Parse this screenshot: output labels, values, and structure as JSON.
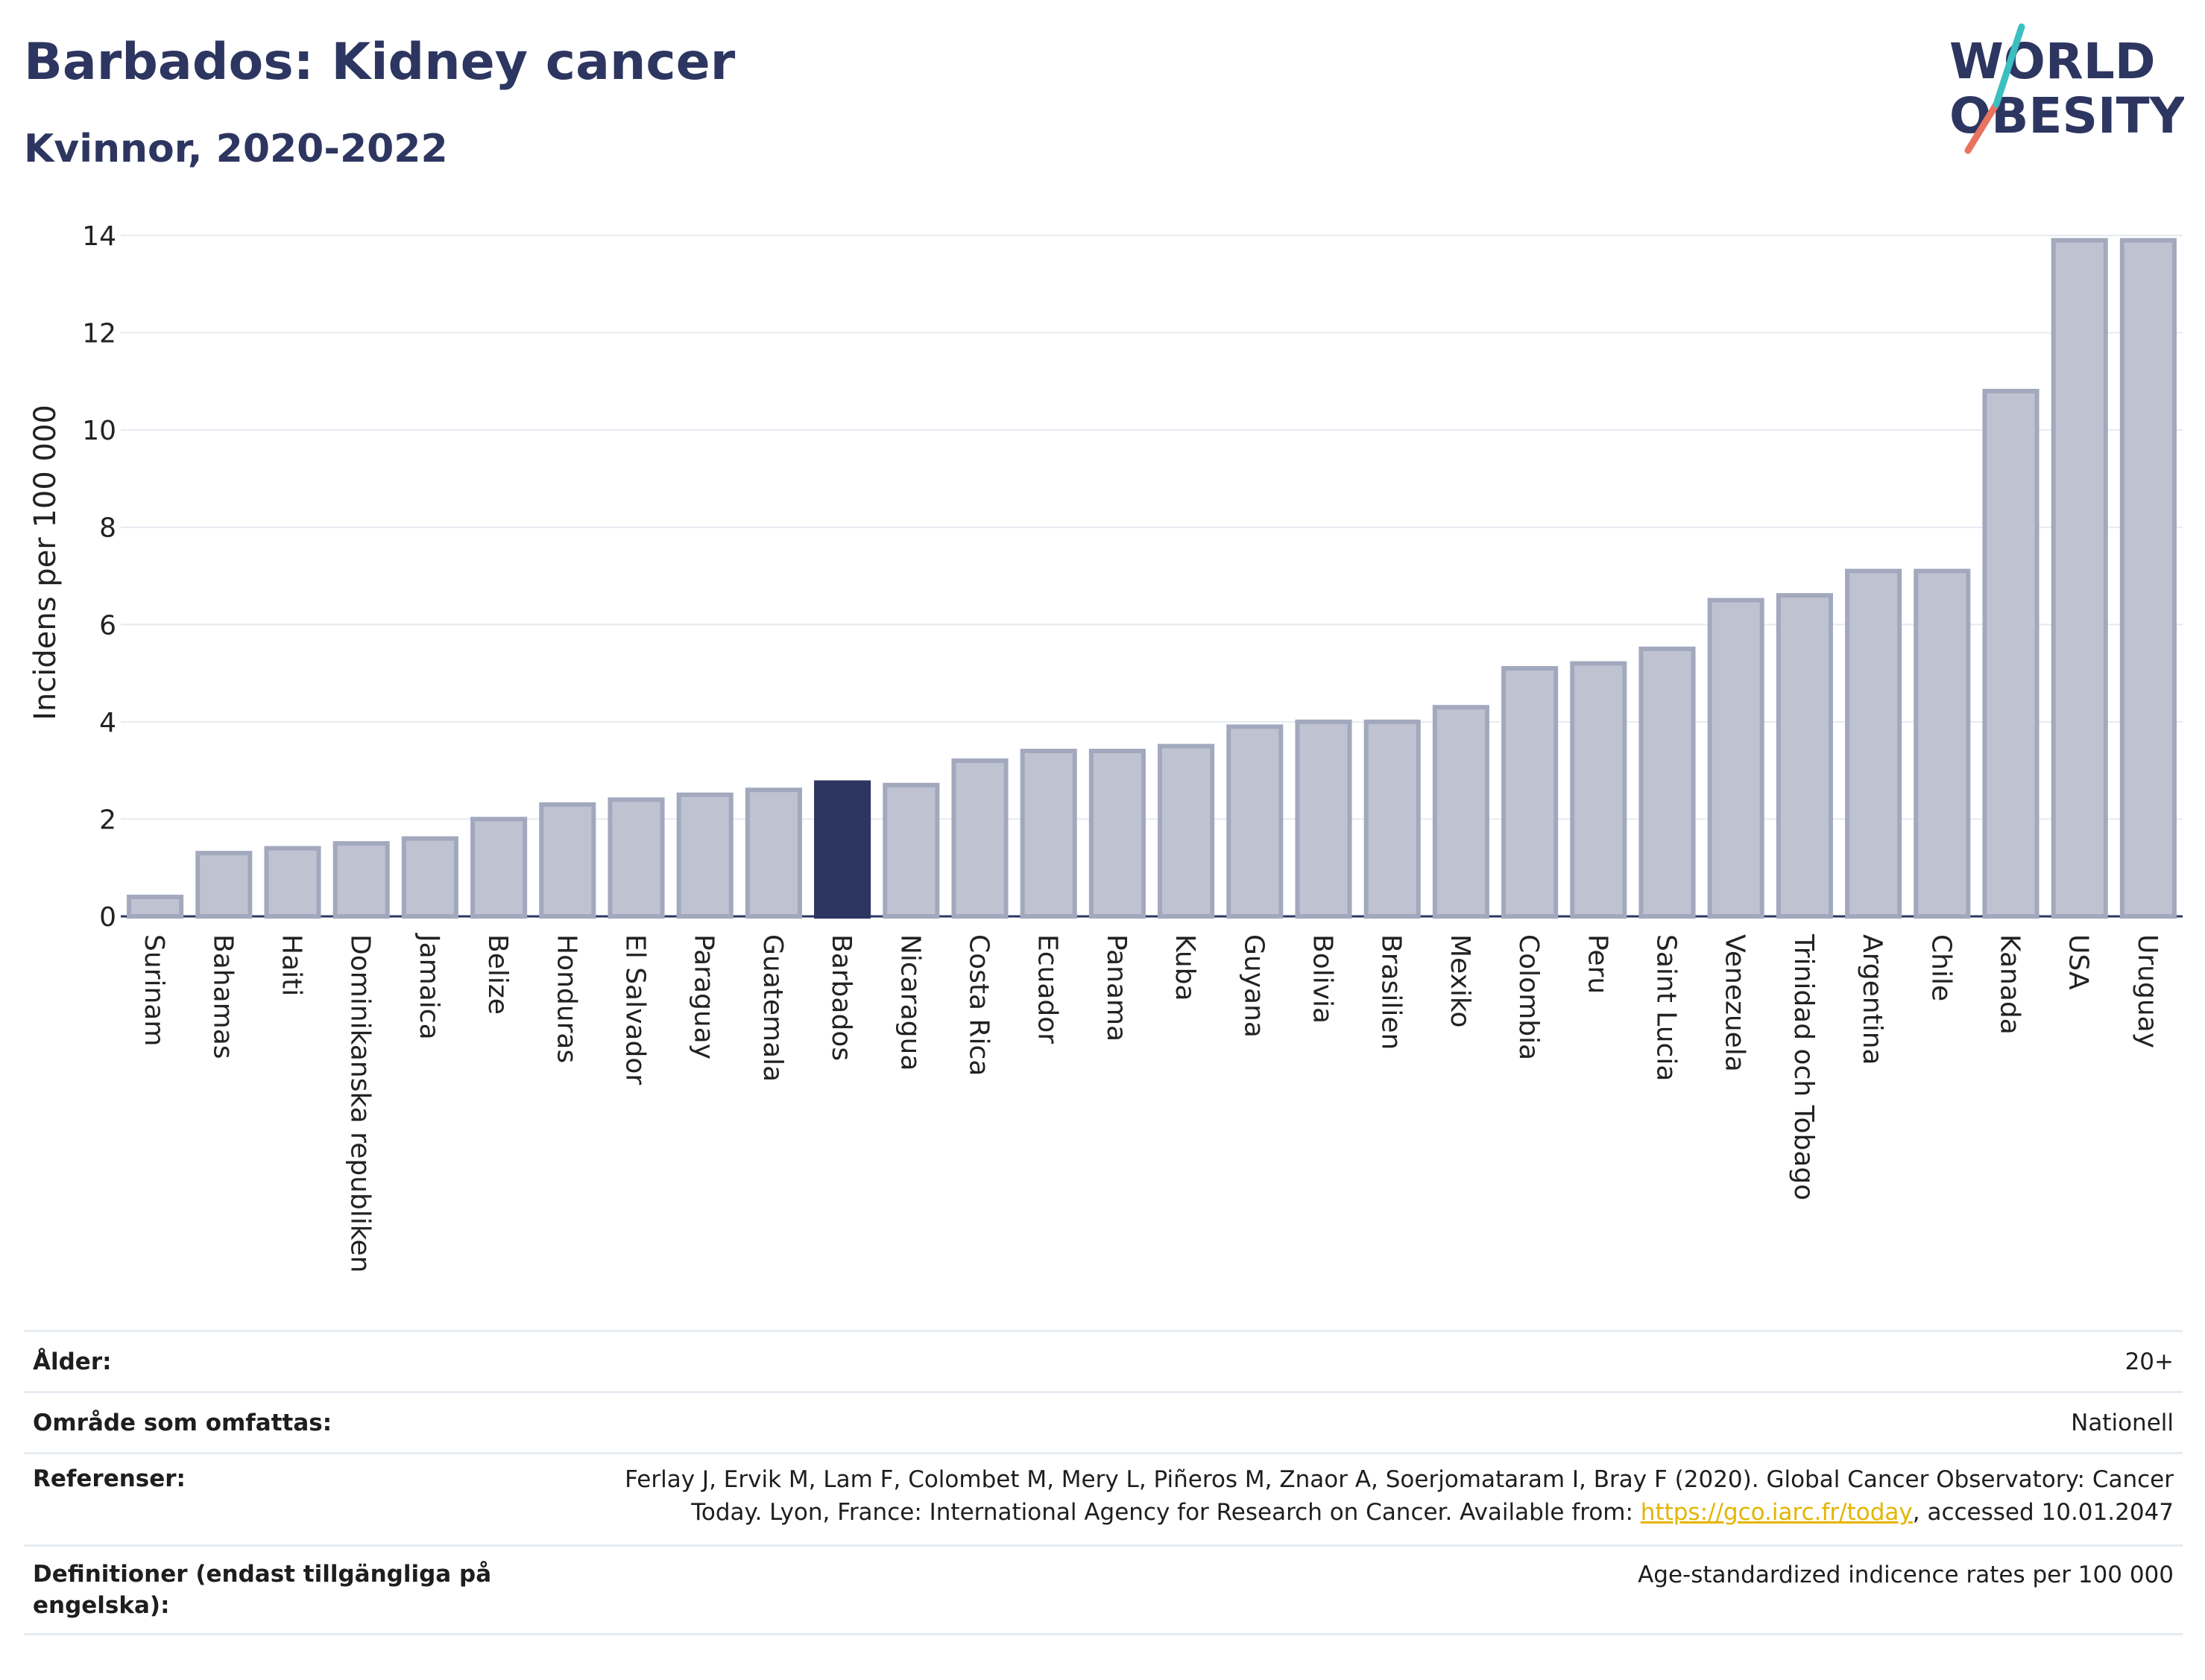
{
  "title": "Barbados: Kidney cancer",
  "subtitle": "Kvinnor, 2020-2022",
  "logo": {
    "line1": "WORLD",
    "line2": "OBESITY"
  },
  "colors": {
    "bar": "#bfc3d1",
    "bar_border": "#a2a8bd",
    "highlight": "#2d3660",
    "grid": "#e6eaf0",
    "link": "#e5b400"
  },
  "chart_data": {
    "type": "bar",
    "categories": [
      "Surinam",
      "Bahamas",
      "Haiti",
      "Dominikanska republiken",
      "Jamaica",
      "Belize",
      "Honduras",
      "El Salvador",
      "Paraguay",
      "Guatemala",
      "Barbados",
      "Nicaragua",
      "Costa Rica",
      "Ecuador",
      "Panama",
      "Kuba",
      "Guyana",
      "Bolivia",
      "Brasilien",
      "Mexiko",
      "Colombia",
      "Peru",
      "Saint Lucia",
      "Venezuela",
      "Trinidad och Tobago",
      "Argentina",
      "Chile",
      "Kanada",
      "USA",
      "Uruguay"
    ],
    "values": [
      0.4,
      1.3,
      1.4,
      1.5,
      1.6,
      2.0,
      2.3,
      2.4,
      2.5,
      2.6,
      2.75,
      2.7,
      3.2,
      3.4,
      3.4,
      3.5,
      3.9,
      4.0,
      4.0,
      4.3,
      5.1,
      5.2,
      5.5,
      6.5,
      6.6,
      7.1,
      7.1,
      10.8,
      13.9,
      13.9
    ],
    "highlight": "Barbados",
    "ylabel": "Incidens per 100 000",
    "xlabel": "",
    "ylim": [
      0,
      14
    ],
    "yticks": [
      0,
      2,
      4,
      6,
      8,
      10,
      12,
      14
    ],
    "grid": true
  },
  "info": [
    {
      "label": "Ålder:",
      "value": "20+"
    },
    {
      "label": "Område som omfattas:",
      "value": "Nationell"
    },
    {
      "label": "Referenser:",
      "value_pre": "Ferlay J, Ervik M, Lam F, Colombet M, Mery L, Piñeros M, Znaor A, Soerjomataram I, Bray F (2020). Global Cancer Observatory: Cancer Today. Lyon, France: International Agency for Research on Cancer. Available from: ",
      "link": "https://gco.iarc.fr/today",
      "value_post": ", accessed 10.01.2047"
    },
    {
      "label": "Definitioner (endast tillgängliga på engelska):",
      "value": "Age-standardized indicence rates per 100 000"
    }
  ]
}
